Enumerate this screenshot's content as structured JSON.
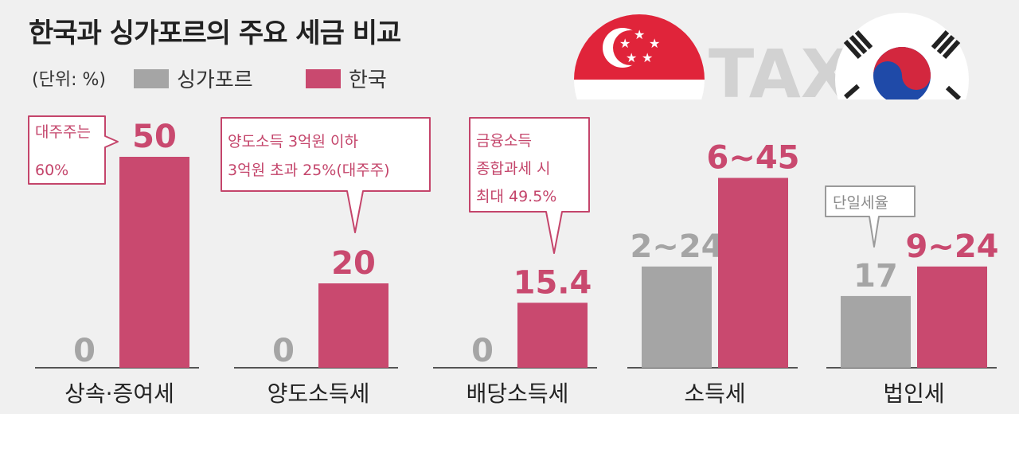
{
  "title": "한국과 싱가포르의 주요 세금 비교",
  "unit": "(단위: %)",
  "watermark": "TAX",
  "colors": {
    "singapore": "#a5a5a5",
    "korea": "#c9496f",
    "callout": "#c4456b",
    "callout_grey": "#9a9a9a",
    "background": "#f0f0f0"
  },
  "icons": [
    "singapore-flag-icon",
    "korea-flag-icon"
  ],
  "chart_data": {
    "type": "bar",
    "title": "한국과 싱가포르의 주요 세금 비교",
    "unit": "%",
    "categories": [
      "상속·증여세",
      "양도소득세",
      "배당소득세",
      "소득세",
      "법인세"
    ],
    "series": [
      {
        "name": "싱가포르",
        "values": [
          0,
          0,
          0,
          24,
          17
        ],
        "labels": [
          "0",
          "0",
          "0",
          "2~24",
          "17"
        ]
      },
      {
        "name": "한국",
        "values": [
          50,
          20,
          15.4,
          45,
          24
        ],
        "labels": [
          "50",
          "20",
          "15.4",
          "6~45",
          "9~24"
        ]
      }
    ],
    "ylim": [
      0,
      60
    ],
    "grid": false,
    "legend": "top-left",
    "annotations": [
      {
        "category": "상속·증여세",
        "series": "한국",
        "lines": [
          "대주주는",
          "60%"
        ]
      },
      {
        "category": "양도소득세",
        "series": "한국",
        "lines": [
          "양도소득 3억원 이하",
          "3억원 초과 25%(대주주)"
        ]
      },
      {
        "category": "배당소득세",
        "series": "한국",
        "lines": [
          "금융소득",
          "종합과세 시",
          "최대 49.5%"
        ]
      },
      {
        "category": "법인세",
        "series": "싱가포르",
        "lines": [
          "단일세율"
        ]
      }
    ]
  }
}
